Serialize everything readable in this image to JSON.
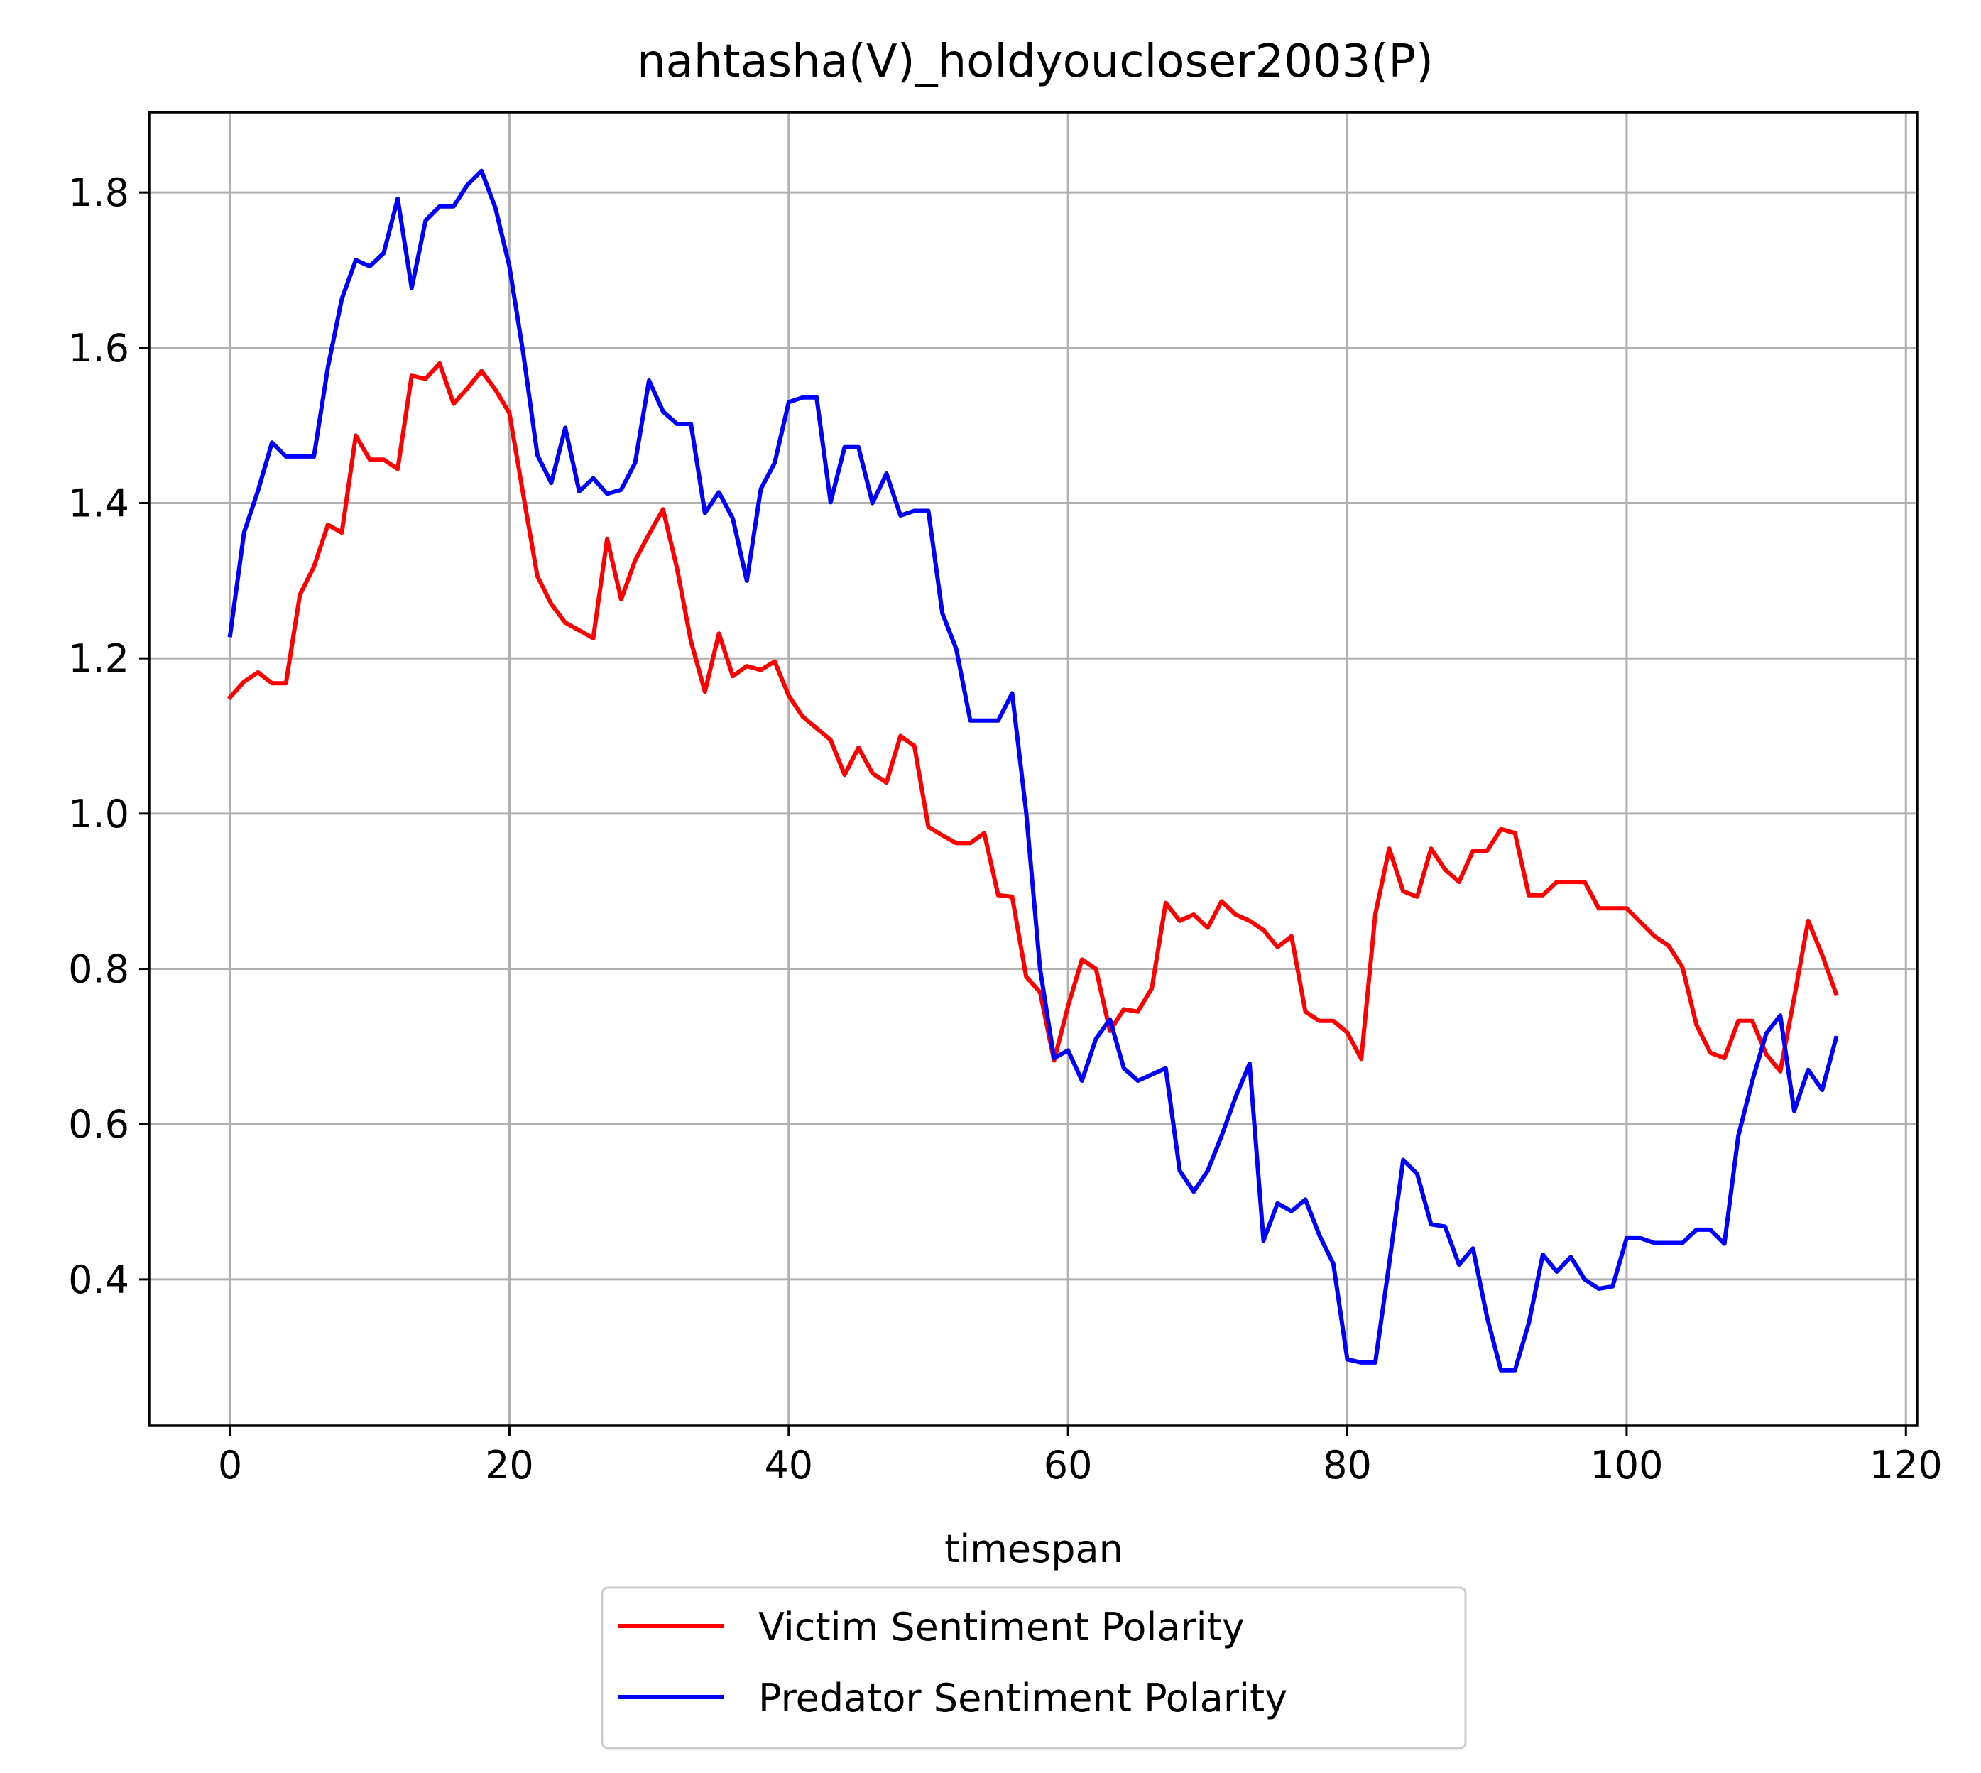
{
  "chart_data": {
    "type": "line",
    "title": "nahtasha(V)_holdyoucloser2003(P)",
    "xlabel": "timespan",
    "ylabel": "",
    "xlim": [
      -5.8,
      120.8
    ],
    "ylim": [
      0.2115,
      1.9035
    ],
    "xticks": [
      0,
      20,
      40,
      60,
      80,
      100,
      120
    ],
    "yticks": [
      0.4,
      0.6,
      0.8,
      1.0,
      1.2,
      1.4,
      1.6,
      1.8
    ],
    "ytick_labels": [
      "0.4",
      "0.6",
      "0.8",
      "1.0",
      "1.2",
      "1.4",
      "1.6",
      "1.8"
    ],
    "grid": true,
    "legend_position": "below the plot, centered",
    "series": [
      {
        "name": "Victim Sentiment Polarity",
        "color": "#ff0000",
        "values": [
          1.15,
          1.17,
          1.182,
          1.168,
          1.168,
          1.282,
          1.318,
          1.372,
          1.362,
          1.487,
          1.456,
          1.456,
          1.444,
          1.564,
          1.56,
          1.58,
          1.528,
          1.548,
          1.57,
          1.546,
          1.516,
          1.41,
          1.306,
          1.27,
          1.246,
          1.236,
          1.226,
          1.354,
          1.276,
          1.326,
          1.36,
          1.392,
          1.316,
          1.222,
          1.157,
          1.232,
          1.177,
          1.19,
          1.185,
          1.196,
          1.152,
          1.125,
          1.11,
          1.095,
          1.05,
          1.085,
          1.052,
          1.04,
          1.1,
          1.087,
          0.983,
          0.972,
          0.962,
          0.962,
          0.975,
          0.895,
          0.893,
          0.79,
          0.77,
          0.682,
          0.752,
          0.812,
          0.8,
          0.72,
          0.748,
          0.745,
          0.775,
          0.885,
          0.862,
          0.87,
          0.853,
          0.887,
          0.87,
          0.862,
          0.85,
          0.828,
          0.842,
          0.745,
          0.733,
          0.733,
          0.718,
          0.684,
          0.87,
          0.955,
          0.9,
          0.893,
          0.955,
          0.928,
          0.912,
          0.952,
          0.952,
          0.98,
          0.975,
          0.895,
          0.895,
          0.912,
          0.912,
          0.912,
          0.878,
          0.878,
          0.878,
          0.86,
          0.842,
          0.83,
          0.802,
          0.728,
          0.692,
          0.685,
          0.733,
          0.733,
          0.69,
          0.668,
          0.763,
          0.862,
          0.818,
          0.768
        ]
      },
      {
        "name": "Predator Sentiment Polarity",
        "color": "#0000ff",
        "values": [
          1.23,
          1.362,
          1.416,
          1.478,
          1.46,
          1.46,
          1.46,
          1.575,
          1.663,
          1.713,
          1.705,
          1.722,
          1.792,
          1.677,
          1.764,
          1.782,
          1.782,
          1.81,
          1.828,
          1.78,
          1.705,
          1.592,
          1.462,
          1.426,
          1.497,
          1.415,
          1.432,
          1.412,
          1.417,
          1.452,
          1.558,
          1.518,
          1.502,
          1.502,
          1.387,
          1.414,
          1.38,
          1.3,
          1.418,
          1.452,
          1.53,
          1.536,
          1.536,
          1.401,
          1.472,
          1.472,
          1.4,
          1.438,
          1.384,
          1.39,
          1.39,
          1.258,
          1.212,
          1.12,
          1.12,
          1.12,
          1.155,
          1.002,
          0.8,
          0.685,
          0.695,
          0.656,
          0.71,
          0.735,
          0.672,
          0.656,
          0.664,
          0.672,
          0.54,
          0.513,
          0.54,
          0.585,
          0.635,
          0.678,
          0.45,
          0.498,
          0.488,
          0.503,
          0.457,
          0.42,
          0.297,
          0.293,
          0.293,
          0.42,
          0.554,
          0.536,
          0.471,
          0.468,
          0.419,
          0.44,
          0.352,
          0.283,
          0.283,
          0.344,
          0.432,
          0.41,
          0.429,
          0.4,
          0.388,
          0.391,
          0.453,
          0.453,
          0.447,
          0.447,
          0.447,
          0.464,
          0.464,
          0.446,
          0.585,
          0.656,
          0.717,
          0.74,
          0.617,
          0.67,
          0.644,
          0.711
        ]
      }
    ]
  }
}
